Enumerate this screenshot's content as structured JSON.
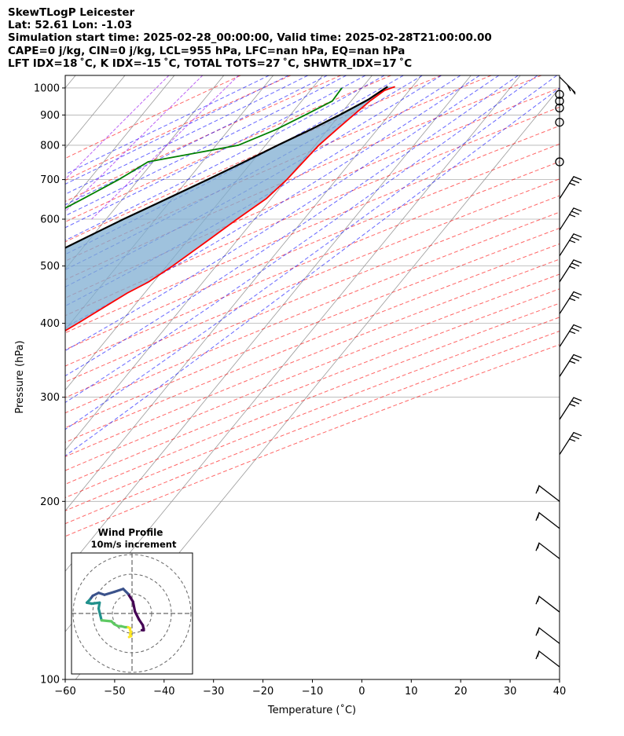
{
  "header": {
    "line1": "SkewTLogP Leicester",
    "line2": "Lat: 52.61   Lon: -1.03",
    "line3": "Simulation start time: 2025-02-28_00:00:00, Valid time: 2025-02-28T21:00:00.00",
    "line4": "CAPE=0 j/kg, CIN=0 j/kg, LCL=955 hPa, LFC=nan hPa, EQ=nan hPa",
    "line5": "LFT IDX=18$^\\circ$C, K IDX=-15$^\\circ$C, TOTAL TOTS=27$^\\circ$C, SHWTR_IDX=17$^\\circ$C"
  },
  "header_display": {
    "line5": "LFT IDX=18 ˚C, K IDX=-15 ˚C, TOTAL TOTS=27 ˚C, SHWTR_IDX=17 ˚C"
  },
  "chart_data": {
    "type": "line",
    "xlabel": "Temperature ($^\\circ$C)",
    "xlabel_display": "Temperature (˚C)",
    "ylabel": "Pressure (hPa)",
    "xlim": [
      -60,
      40
    ],
    "ylim": [
      1050,
      100
    ],
    "y_scale": "log",
    "x_ticks": [
      -60,
      -50,
      -40,
      -30,
      -20,
      -10,
      0,
      10,
      20,
      30,
      40
    ],
    "y_ticks": [
      1000,
      900,
      800,
      700,
      600,
      500,
      400,
      300,
      200,
      100
    ],
    "grid": true,
    "colors": {
      "temperature": "#ff0000",
      "dewpoint": "#008000",
      "parcel": "#000000",
      "cape_fill": "#7fadd2",
      "dry_adiabat": "#ff0000",
      "moist_adiabat": "#0000ff",
      "mixing_ratio": "#a020f0",
      "isotherm": "#999999"
    },
    "series": [
      {
        "name": "temperature",
        "points": [
          [
            1005,
            6.5
          ],
          [
            990,
            5.0
          ],
          [
            950,
            3.8
          ],
          [
            900,
            2.8
          ],
          [
            850,
            1.8
          ],
          [
            800,
            0.8
          ],
          [
            750,
            0.4
          ],
          [
            700,
            0.0
          ],
          [
            650,
            -1.0
          ],
          [
            600,
            -3.5
          ],
          [
            550,
            -6.0
          ],
          [
            500,
            -8.8
          ],
          [
            470,
            -11.0
          ],
          [
            450,
            -13.5
          ],
          [
            400,
            -18.5
          ],
          [
            370,
            -22.0
          ],
          [
            340,
            -26.0
          ],
          [
            300,
            -33.0
          ],
          [
            260,
            -40.5
          ],
          [
            230,
            -46.0
          ],
          [
            210,
            -50.0
          ],
          [
            200,
            -52.0
          ],
          [
            190,
            -52.5
          ],
          [
            180,
            -49.5
          ],
          [
            170,
            -45.5
          ],
          [
            165,
            -44.2
          ],
          [
            155,
            -42.8
          ],
          [
            145,
            -44.0
          ],
          [
            130,
            -48.5
          ],
          [
            115,
            -54.0
          ],
          [
            105,
            -58.0
          ],
          [
            100,
            -60.0
          ]
        ]
      },
      {
        "name": "dewpoint",
        "points": [
          [
            1000,
            -4.0
          ],
          [
            990,
            -4.0
          ],
          [
            950,
            -3.8
          ],
          [
            900,
            -7.0
          ],
          [
            850,
            -10.5
          ],
          [
            800,
            -15.5
          ],
          [
            750,
            -31.0
          ],
          [
            700,
            -34.0
          ],
          [
            650,
            -38.0
          ],
          [
            600,
            -42.5
          ],
          [
            550,
            -48.0
          ],
          [
            500,
            -51.5
          ],
          [
            450,
            -49.5
          ],
          [
            400,
            -52.0
          ],
          [
            370,
            -56.0
          ],
          [
            340,
            -63.0
          ],
          [
            300,
            -67.5
          ],
          [
            270,
            -70.0
          ],
          [
            255,
            -68.0
          ],
          [
            240,
            -74.0
          ],
          [
            225,
            -80.0
          ],
          [
            200,
            -80.0
          ],
          [
            185,
            -79.0
          ],
          [
            170,
            -81.0
          ],
          [
            160,
            -87.0
          ],
          [
            150,
            -87.0
          ],
          [
            130,
            -88.0
          ],
          [
            115,
            -90.0
          ],
          [
            105,
            -92.0
          ],
          [
            100,
            -94.0
          ]
        ]
      },
      {
        "name": "parcel",
        "points": [
          [
            1005,
            5.0
          ],
          [
            955,
            3.2
          ],
          [
            900,
            0.0
          ],
          [
            850,
            -3.5
          ],
          [
            800,
            -7.5
          ],
          [
            750,
            -11.5
          ],
          [
            700,
            -16.0
          ],
          [
            650,
            -21.0
          ],
          [
            600,
            -26.5
          ],
          [
            550,
            -32.0
          ],
          [
            500,
            -38.0
          ],
          [
            450,
            -44.0
          ],
          [
            400,
            -50.5
          ],
          [
            350,
            -58.0
          ],
          [
            300,
            -66.0
          ],
          [
            250,
            -75.0
          ],
          [
            200,
            -84.5
          ],
          [
            150,
            -95.0
          ],
          [
            100,
            -108.0
          ]
        ]
      }
    ],
    "wind_barbs": [
      {
        "p": 1000,
        "kind": "barb"
      },
      {
        "p": 975,
        "kind": "calm"
      },
      {
        "p": 950,
        "kind": "calm"
      },
      {
        "p": 925,
        "kind": "calm"
      },
      {
        "p": 875,
        "kind": "calm"
      },
      {
        "p": 750,
        "kind": "calm"
      },
      {
        "p": 650,
        "kind": "barb"
      },
      {
        "p": 575,
        "kind": "barb"
      },
      {
        "p": 520,
        "kind": "barb"
      },
      {
        "p": 470,
        "kind": "barb"
      },
      {
        "p": 415,
        "kind": "barb"
      },
      {
        "p": 365,
        "kind": "barb"
      },
      {
        "p": 325,
        "kind": "barb"
      },
      {
        "p": 275,
        "kind": "barb"
      },
      {
        "p": 240,
        "kind": "barb"
      },
      {
        "p": 200,
        "kind": "barb"
      },
      {
        "p": 180,
        "kind": "barb"
      },
      {
        "p": 160,
        "kind": "barb"
      },
      {
        "p": 130,
        "kind": "barb"
      },
      {
        "p": 115,
        "kind": "barb"
      },
      {
        "p": 105,
        "kind": "barb"
      }
    ]
  },
  "hodograph": {
    "title_line1": "Wind Profile",
    "title_line2": "10m/s increment",
    "colors": [
      "#440154",
      "#3b528b",
      "#21918c",
      "#5ec962",
      "#fde725"
    ],
    "uv": [
      [
        5.0,
        8.5
      ],
      [
        6.0,
        8.5
      ],
      [
        5.5,
        6.0
      ],
      [
        3.5,
        3.0
      ],
      [
        1.5,
        -1.0
      ],
      [
        0.5,
        -6.0
      ],
      [
        -2.0,
        -10.0
      ],
      [
        -4.5,
        -12.5
      ],
      [
        -9.0,
        -11.0
      ],
      [
        -14.0,
        -9.5
      ],
      [
        -17.0,
        -10.5
      ],
      [
        -20.0,
        -9.0
      ],
      [
        -21.5,
        -7.0
      ],
      [
        -23.0,
        -5.5
      ],
      [
        -20.5,
        -5.0
      ],
      [
        -16.5,
        -5.5
      ],
      [
        -17.0,
        -2.5
      ],
      [
        -16.0,
        1.5
      ],
      [
        -15.5,
        3.5
      ],
      [
        -10.5,
        4.0
      ],
      [
        -9.0,
        5.5
      ],
      [
        -7.0,
        6.5
      ],
      [
        -5.5,
        6.5
      ],
      [
        -3.5,
        7.0
      ],
      [
        -2.0,
        7.0
      ],
      [
        -1.0,
        7.5
      ],
      [
        -1.0,
        8.5
      ],
      [
        -0.5,
        9.5
      ],
      [
        -1.0,
        10.5
      ],
      [
        -0.5,
        11.5
      ],
      [
        -1.5,
        12.0
      ]
    ]
  }
}
